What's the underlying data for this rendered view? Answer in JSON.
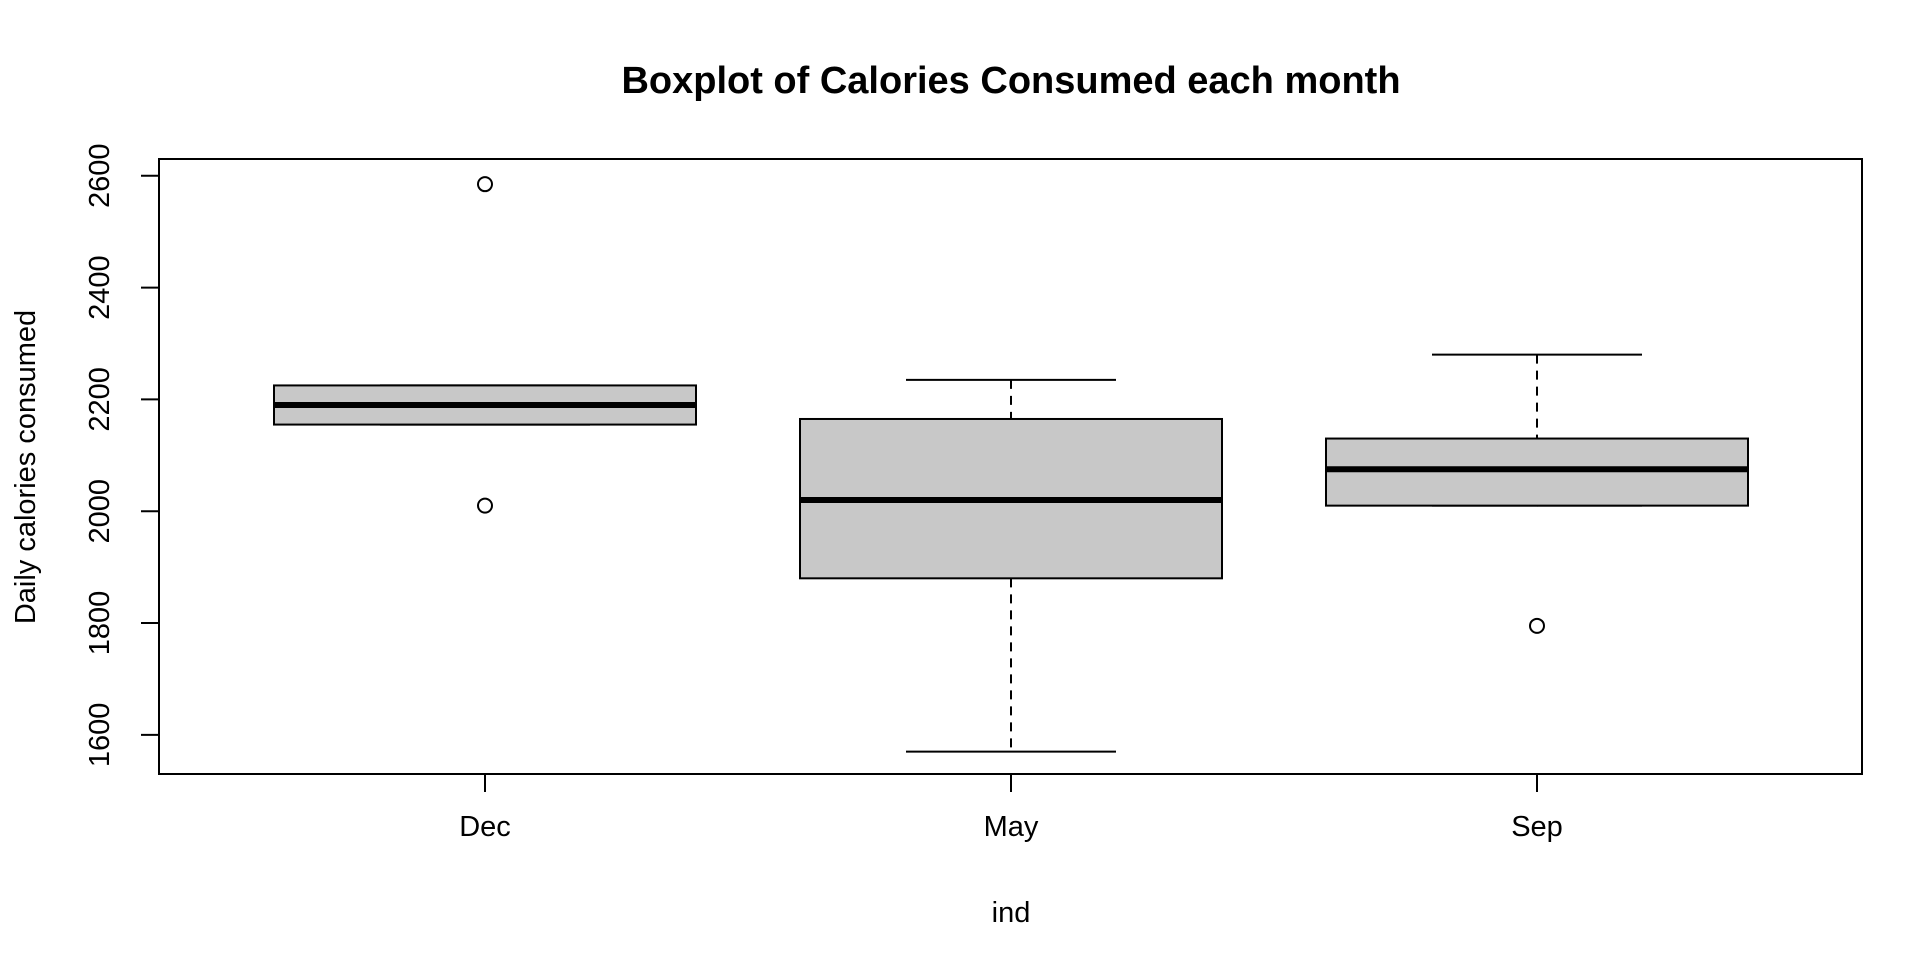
{
  "chart_data": {
    "type": "boxplot",
    "title": "Boxplot of Calories Consumed each month",
    "xlabel": "ind",
    "ylabel": "Daily calories consumed",
    "categories": [
      "Dec",
      "May",
      "Sep"
    ],
    "ylim": [
      1530,
      2630
    ],
    "yticks": [
      1600,
      1800,
      2000,
      2200,
      2400,
      2600
    ],
    "grid": false,
    "box_color": "#c8c8c8",
    "series": [
      {
        "category": "Dec",
        "whisker_low": 2155,
        "q1": 2155,
        "median": 2190,
        "q3": 2225,
        "whisker_high": 2225,
        "outliers": [
          2585,
          2010
        ]
      },
      {
        "category": "May",
        "whisker_low": 1570,
        "q1": 1880,
        "median": 2020,
        "q3": 2165,
        "whisker_high": 2235,
        "outliers": []
      },
      {
        "category": "Sep",
        "whisker_low": 2010,
        "q1": 2010,
        "median": 2075,
        "q3": 2130,
        "whisker_high": 2280,
        "outliers": [
          1795
        ]
      }
    ]
  }
}
